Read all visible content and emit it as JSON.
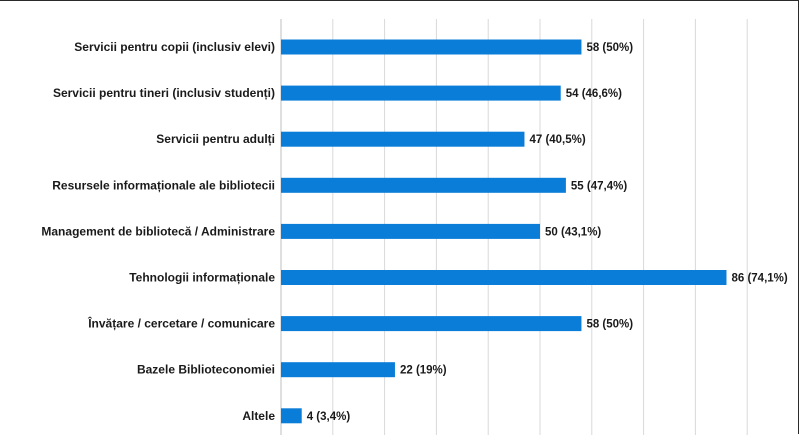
{
  "chart_data": {
    "type": "bar",
    "orientation": "horizontal",
    "title": "",
    "xlabel": "",
    "ylabel": "",
    "xlim": [
      0,
      90
    ],
    "grid": true,
    "legend": "none",
    "bar_color": "#0a7dd8",
    "categories": [
      "Servicii pentru copii (inclusiv elevi)",
      "Servicii pentru tineri (inclusiv studenți)",
      "Servicii pentru adulți",
      "Resursele informaționale ale bibliotecii",
      "Management de bibliotecă / Administrare",
      "Tehnologii informaționale",
      "Învățare / cercetare / comunicare",
      "Bazele Biblioteconomiei",
      "Altele"
    ],
    "values": [
      58,
      54,
      47,
      55,
      50,
      86,
      58,
      22,
      4
    ],
    "value_labels": [
      "58 (50%)",
      "54 (46,6%)",
      "47 (40,5%)",
      "55 (47,4%)",
      "50 (43,1%)",
      "86 (74,1%)",
      "58 (50%)",
      "22 (19%)",
      "4 (3,4%)"
    ]
  }
}
